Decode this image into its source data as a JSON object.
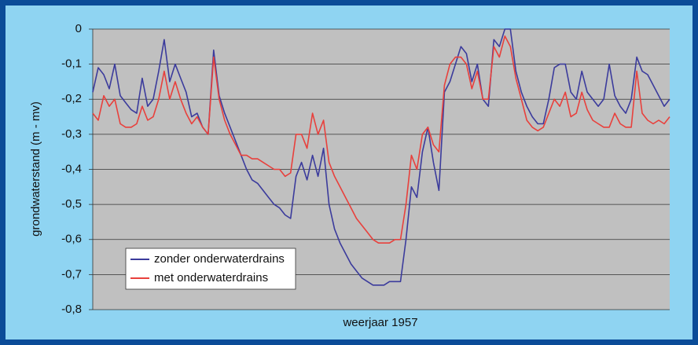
{
  "chart_data": {
    "type": "line",
    "x_label": "weerjaar 1957",
    "y_label": "grondwaterstand (m - mv)",
    "ylim": [
      -0.8,
      0
    ],
    "yticks": [
      {
        "value": -0.8,
        "label": "-0,8"
      },
      {
        "value": -0.7,
        "label": "-0,7"
      },
      {
        "value": -0.6,
        "label": "-0,6"
      },
      {
        "value": -0.5,
        "label": "-0,5"
      },
      {
        "value": -0.4,
        "label": "-0,4"
      },
      {
        "value": -0.3,
        "label": "-0,3"
      },
      {
        "value": -0.2,
        "label": "-0,2"
      },
      {
        "value": -0.1,
        "label": "-0,1"
      },
      0
    ],
    "grid": true,
    "legend": "lower left",
    "series": [
      {
        "name": "zonder onderwaterdrains",
        "color": "#3b3b9c",
        "values": [
          -0.18,
          -0.11,
          -0.13,
          -0.17,
          -0.1,
          -0.19,
          -0.21,
          -0.23,
          -0.24,
          -0.14,
          -0.22,
          -0.2,
          -0.12,
          -0.03,
          -0.15,
          -0.1,
          -0.14,
          -0.18,
          -0.25,
          -0.24,
          -0.28,
          -0.3,
          -0.06,
          -0.19,
          -0.24,
          -0.28,
          -0.32,
          -0.36,
          -0.4,
          -0.43,
          -0.44,
          -0.46,
          -0.48,
          -0.5,
          -0.51,
          -0.53,
          -0.54,
          -0.42,
          -0.38,
          -0.43,
          -0.36,
          -0.42,
          -0.34,
          -0.5,
          -0.57,
          -0.61,
          -0.64,
          -0.67,
          -0.69,
          -0.71,
          -0.72,
          -0.73,
          -0.73,
          -0.73,
          -0.72,
          -0.72,
          -0.72,
          -0.6,
          -0.45,
          -0.48,
          -0.35,
          -0.28,
          -0.38,
          -0.46,
          -0.18,
          -0.15,
          -0.1,
          -0.05,
          -0.07,
          -0.15,
          -0.1,
          -0.2,
          -0.22,
          -0.03,
          -0.05,
          0,
          0,
          -0.12,
          -0.18,
          -0.22,
          -0.25,
          -0.27,
          -0.27,
          -0.2,
          -0.11,
          -0.1,
          -0.1,
          -0.18,
          -0.2,
          -0.12,
          -0.18,
          -0.2,
          -0.22,
          -0.2,
          -0.1,
          -0.19,
          -0.22,
          -0.24,
          -0.2,
          -0.08,
          -0.12,
          -0.13,
          -0.16,
          -0.19,
          -0.22,
          -0.2
        ]
      },
      {
        "name": "met onderwaterdrains",
        "color": "#e8403c",
        "values": [
          -0.24,
          -0.26,
          -0.19,
          -0.22,
          -0.2,
          -0.27,
          -0.28,
          -0.28,
          -0.27,
          -0.22,
          -0.26,
          -0.25,
          -0.2,
          -0.12,
          -0.2,
          -0.15,
          -0.2,
          -0.24,
          -0.27,
          -0.25,
          -0.28,
          -0.3,
          -0.08,
          -0.2,
          -0.26,
          -0.3,
          -0.33,
          -0.36,
          -0.36,
          -0.37,
          -0.37,
          -0.38,
          -0.39,
          -0.4,
          -0.4,
          -0.42,
          -0.41,
          -0.3,
          -0.3,
          -0.34,
          -0.24,
          -0.3,
          -0.26,
          -0.38,
          -0.42,
          -0.45,
          -0.48,
          -0.51,
          -0.54,
          -0.56,
          -0.58,
          -0.6,
          -0.61,
          -0.61,
          -0.61,
          -0.6,
          -0.6,
          -0.5,
          -0.36,
          -0.4,
          -0.3,
          -0.28,
          -0.33,
          -0.35,
          -0.16,
          -0.1,
          -0.08,
          -0.08,
          -0.1,
          -0.17,
          -0.12,
          -0.2,
          -0.2,
          -0.05,
          -0.08,
          -0.02,
          -0.05,
          -0.14,
          -0.2,
          -0.26,
          -0.28,
          -0.29,
          -0.28,
          -0.24,
          -0.2,
          -0.22,
          -0.18,
          -0.25,
          -0.24,
          -0.18,
          -0.23,
          -0.26,
          -0.27,
          -0.28,
          -0.28,
          -0.24,
          -0.27,
          -0.28,
          -0.28,
          -0.12,
          -0.24,
          -0.26,
          -0.27,
          -0.26,
          -0.27,
          -0.25
        ]
      }
    ]
  }
}
